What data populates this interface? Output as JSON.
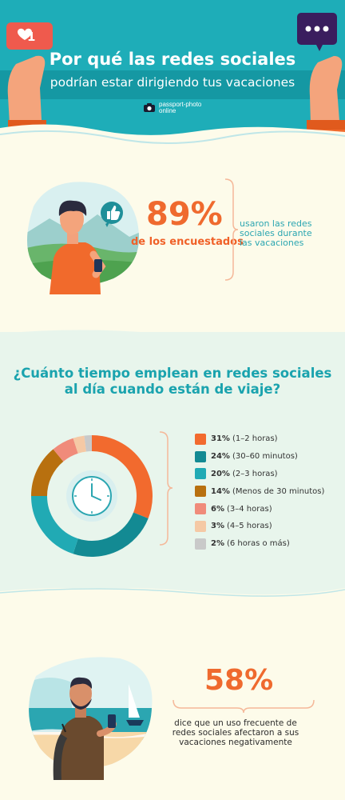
{
  "header": {
    "title_line1": "Por qué las redes sociales",
    "title_line2": "podrían estar dirigiendo tus vacaciones",
    "brand_line1": "passport-photo",
    "brand_line2": "online",
    "notification_count": "1",
    "chat_icon": "ellipsis-chat-icon",
    "heart_icon": "heart-icon"
  },
  "stat1": {
    "value": "89%",
    "label": "de los encuestados",
    "description_line1": "usaron las redes",
    "description_line2": "sociales durante",
    "description_line3": "las vacaciones"
  },
  "chart_section": {
    "question_line1": "¿Cuánto tiempo emplean en redes sociales",
    "question_line2": "al día cuando están de viaje?"
  },
  "chart_data": {
    "type": "pie",
    "categories": [
      "1–2 horas",
      "30–60 minutos",
      "2–3 horas",
      "Menos de 30 minutos",
      "3–4 horas",
      "4–5 horas",
      "6 horas o más"
    ],
    "values": [
      31,
      24,
      20,
      14,
      6,
      3,
      2
    ],
    "labels": [
      "31%",
      "24%",
      "20%",
      "14%",
      "6%",
      "3%",
      "2%"
    ],
    "legend_text": [
      "(1–2 horas)",
      "(30–60 minutos)",
      "(2–3 horas)",
      "(Menos de 30 minutos)",
      "(3–4 horas)",
      "(4–5 horas)",
      "(6 horas o más)"
    ],
    "colors": [
      "#f26a2e",
      "#138a93",
      "#21aab4",
      "#b8700f",
      "#f08b7a",
      "#f5c9a5",
      "#c9c9c9"
    ],
    "center_icon": "clock-icon",
    "legend_placement": "right"
  },
  "stat2": {
    "value": "58%",
    "description_line1": "dice que un uso frecuente de",
    "description_line2": "redes sociales afectaron a sus",
    "description_line3": "vacaciones negativamente"
  }
}
